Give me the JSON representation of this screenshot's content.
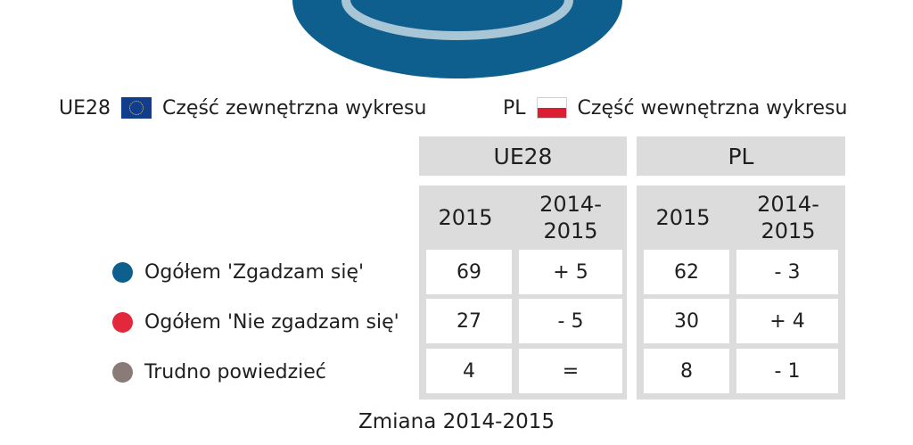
{
  "colors": {
    "agree": "#0e5f8e",
    "disagree": "#e2283a",
    "dont_know": "#8a7b78",
    "inner_ring": "#a9c6d6",
    "table_bg": "#dcdcdc"
  },
  "legend": {
    "eu_code": "UE28",
    "eu_text": "Część zewnętrzna wykresu",
    "pl_code": "PL",
    "pl_text": "Część wewnętrzna wykresu"
  },
  "groups": [
    "UE28",
    "PL"
  ],
  "col_year": "2015",
  "col_change": "2014-\n2015",
  "footer": "Zmiana 2014-2015",
  "chart_data": {
    "type": "table",
    "groups": [
      "UE28",
      "PL"
    ],
    "columns": [
      "2015",
      "2014-2015"
    ],
    "rows": [
      {
        "label": "Ogółem 'Zgadzam się'",
        "UE28_2015": "69",
        "UE28_change": "+ 5",
        "PL_2015": "62",
        "PL_change": "- 3"
      },
      {
        "label": "Ogółem 'Nie zgadzam się'",
        "UE28_2015": "27",
        "UE28_change": "- 5",
        "PL_2015": "30",
        "PL_change": "+ 4"
      },
      {
        "label": "Trudno powiedzieć",
        "UE28_2015": "4",
        "UE28_change": "=",
        "PL_2015": "8",
        "PL_change": "- 1"
      }
    ]
  }
}
